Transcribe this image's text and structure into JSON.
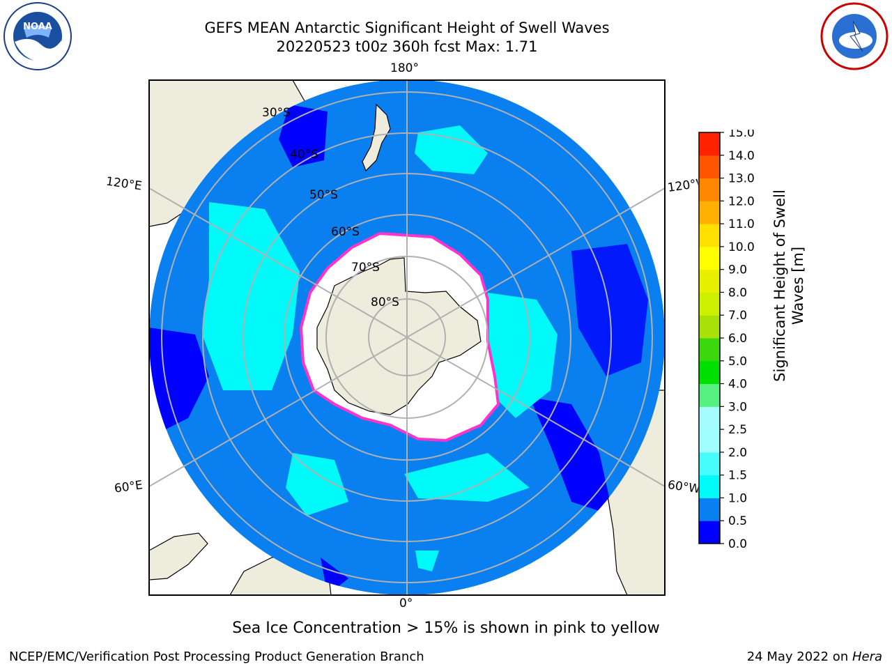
{
  "header": {
    "title_line1": "GEFS MEAN Antarctic Significant Height of Swell Waves",
    "title_line2": "20220523 t00z 360h fcst   Max: 1.71"
  },
  "logos": {
    "noaa": {
      "text": "NOAA",
      "ring_text": "NATIONAL OCEANIC AND ATMOSPHERIC ADMINISTRATION · U.S. DEPARTMENT OF COMMERCE",
      "icon": "noaa-logo"
    },
    "nws": {
      "ring_text": "NATIONAL WEATHER SERVICE",
      "icon": "nws-logo"
    }
  },
  "map": {
    "longitude_labels": {
      "top": "180°",
      "bottom": "0°",
      "upper_left": "120°E",
      "upper_right": "120°W",
      "lower_left": "60°E",
      "lower_right": "60°W"
    },
    "latitude_labels": [
      "30°S",
      "40°S",
      "50°S",
      "60°S",
      "70°S",
      "80°S"
    ],
    "colors": {
      "land": "#eeecdc",
      "ocean_0_05": "#0000ff",
      "ocean_05_1": "#0a7ff0",
      "ocean_1_15": "#00f9f9",
      "sea_ice": "#ffffff",
      "ice_edge": "#ff33cc",
      "gridline": "#b0b0b0"
    }
  },
  "colorbar": {
    "label": "Significant Height of Swell Waves [m]",
    "label_line1": "Significant Height of Swell",
    "label_line2": "Waves [m]",
    "ticks": [
      "0.0",
      "0.5",
      "1.0",
      "1.5",
      "2.0",
      "2.5",
      "3.0",
      "4.0",
      "5.0",
      "6.0",
      "7.0",
      "8.0",
      "9.0",
      "10.0",
      "11.0",
      "12.0",
      "13.0",
      "14.0",
      "15.0"
    ],
    "colors": [
      "#0000ff",
      "#0a7ff0",
      "#00f9f9",
      "#48fcfc",
      "#9ffdfd",
      "#a5fcff",
      "#55f080",
      "#00e000",
      "#3cd80e",
      "#a8e00a",
      "#ccf000",
      "#e8f000",
      "#ffff00",
      "#ffe000",
      "#ffb000",
      "#ff8800",
      "#ff5500",
      "#ff2200",
      "#ff0000"
    ]
  },
  "footer": {
    "note": "Sea Ice Concentration > 15% is shown in pink to yellow",
    "credit_left": "NCEP/EMC/Verification Post Processing Product Generation Branch",
    "credit_right_date": "24 May 2022 on ",
    "credit_right_host": "Hera"
  }
}
